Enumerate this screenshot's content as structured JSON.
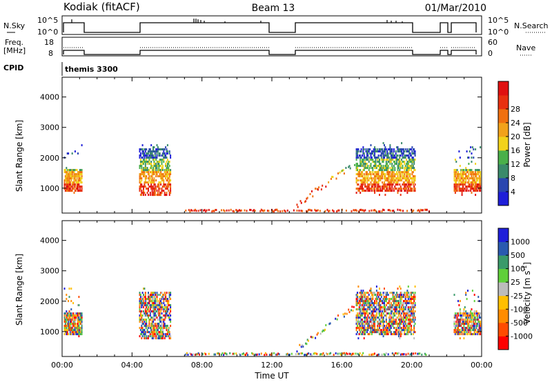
{
  "header": {
    "station": "Kodiak (fitACF)",
    "beam": "Beam 13",
    "date": "01/Mar/2010"
  },
  "strips": {
    "nsky_label": "N.Sky",
    "nsky_ticks": [
      "10^5",
      "10^0"
    ],
    "nsearch_label": "N.Search",
    "nsearch_ticks": [
      "10^5",
      "10^0"
    ],
    "freq_label_1": "Freq.",
    "freq_label_2": "[MHz]",
    "freq_ticks": [
      "18",
      "8"
    ],
    "nave_label": "Nave",
    "nave_ticks": [
      "60",
      "0"
    ],
    "cpid_label": "CPID",
    "cpid_value": "themis 3300"
  },
  "colors": {
    "power": [
      "#1f1fd9",
      "#2a46b0",
      "#3a8a6a",
      "#4ab04a",
      "#f2d21a",
      "#f2a21a",
      "#f0700f",
      "#e83010",
      "#e01010"
    ],
    "velocity": [
      "#ff0000",
      "#ff4b00",
      "#ff8c00",
      "#ffbf00",
      "#bcbcbc",
      "#5fcf3a",
      "#3a9a6a",
      "#2a5ab0",
      "#1f1fd9"
    ]
  },
  "chart_data": [
    {
      "type": "heatmap",
      "name": "power",
      "ylabel": "Slant Range [km]",
      "xlim_hours": [
        0,
        24
      ],
      "ylim_km": [
        180,
        4650
      ],
      "yticks": [
        "1000",
        "2000",
        "3000",
        "4000"
      ],
      "colorbar_label": "Power [dB]",
      "colorbar_ticks": [
        "4",
        "8",
        "12",
        "16",
        "20",
        "24",
        "28"
      ],
      "grid": false
    },
    {
      "type": "heatmap",
      "name": "velocity",
      "ylabel": "Slant Range [km]",
      "xlim_hours": [
        0,
        24
      ],
      "ylim_km": [
        180,
        4650
      ],
      "yticks": [
        "1000",
        "2000",
        "3000",
        "4000"
      ],
      "colorbar_label": "Velocity [m s",
      "colorbar_unit_sup": "-1",
      "colorbar_label_end": "]",
      "colorbar_ticks": [
        "1000",
        "500",
        "100",
        "25",
        "-25",
        "-100",
        "-500",
        "-1000"
      ],
      "grid": false
    }
  ],
  "xaxis": {
    "label": "Time UT",
    "ticks": [
      "00:00",
      "04:00",
      "08:00",
      "12:00",
      "16:00",
      "20:00",
      "00:00"
    ]
  }
}
